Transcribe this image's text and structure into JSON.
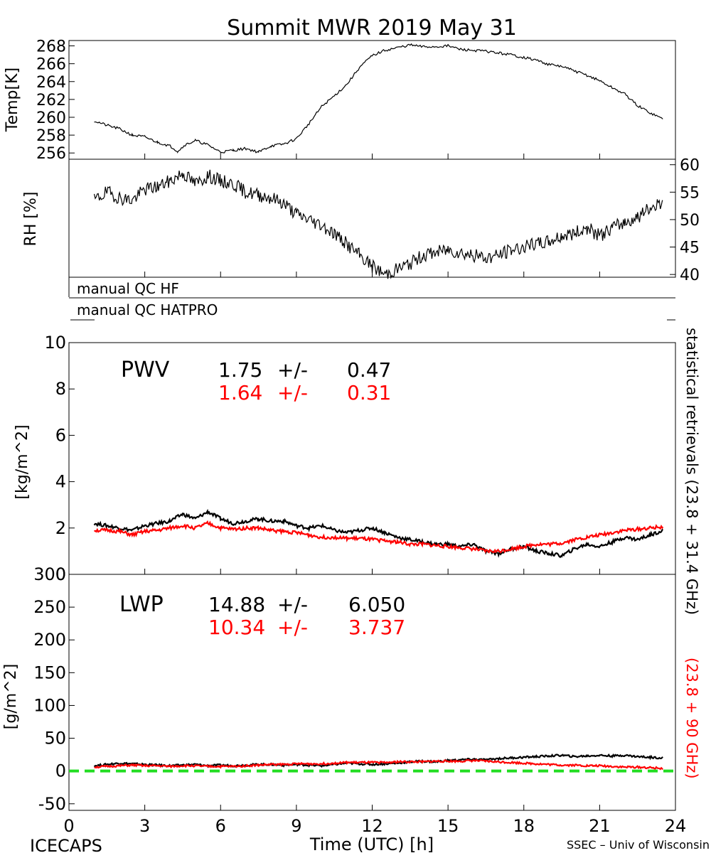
{
  "title": "Summit MWR 2019 May 31",
  "footer": {
    "left": "ICECAPS",
    "right": "SSEC – Univ of Wisconsin"
  },
  "side_labels": {
    "black": "statistical retrievals (23.8 + 31.4 GHz)",
    "red": "(23.8 + 90 GHz)"
  },
  "colors": {
    "black_series": "#000000",
    "red_series": "#ff0000",
    "zero_line": "#22dd22"
  },
  "chart_data": [
    {
      "id": "temp",
      "type": "line",
      "ylabel": "Temp[K]",
      "ylim": [
        255.3,
        268.6
      ],
      "yticks": [
        256,
        258,
        260,
        262,
        264,
        266,
        268
      ],
      "axis_side": "left",
      "x": [
        1.0,
        1.5,
        2.0,
        2.5,
        3.0,
        3.5,
        4.0,
        4.3,
        4.6,
        5.0,
        5.5,
        6.0,
        6.5,
        7.0,
        7.5,
        8.0,
        8.5,
        9.0,
        9.5,
        10.0,
        10.5,
        11.0,
        11.5,
        12.0,
        12.5,
        13.0,
        13.5,
        14.0,
        14.5,
        15.0,
        15.5,
        16.0,
        16.5,
        17.0,
        17.5,
        18.0,
        18.5,
        19.0,
        19.5,
        20.0,
        20.5,
        21.0,
        21.5,
        22.0,
        22.5,
        23.0,
        23.5
      ],
      "y": [
        259.6,
        259.1,
        258.7,
        258.0,
        257.8,
        257.2,
        256.8,
        256.2,
        256.9,
        257.4,
        256.9,
        256.1,
        256.3,
        256.5,
        256.1,
        256.8,
        257.0,
        257.6,
        259.3,
        261.2,
        262.4,
        263.7,
        265.6,
        266.9,
        267.5,
        267.8,
        268.1,
        267.9,
        267.9,
        268.0,
        267.6,
        267.5,
        267.4,
        267.2,
        267.0,
        266.7,
        266.4,
        265.9,
        265.7,
        265.2,
        264.7,
        264.1,
        263.3,
        262.6,
        261.3,
        260.5,
        259.8
      ]
    },
    {
      "id": "rh",
      "type": "line",
      "ylabel": "RH [%]",
      "ylim": [
        39.5,
        61
      ],
      "yticks": [
        40,
        45,
        50,
        55,
        60
      ],
      "axis_side": "right",
      "x": [
        1.0,
        1.5,
        2.0,
        2.5,
        3.0,
        3.5,
        4.0,
        4.5,
        5.0,
        5.5,
        6.0,
        6.5,
        7.0,
        7.5,
        8.0,
        8.5,
        9.0,
        9.5,
        10.0,
        10.5,
        11.0,
        11.5,
        12.0,
        12.5,
        13.0,
        13.5,
        14.0,
        14.5,
        15.0,
        15.5,
        16.0,
        16.5,
        17.0,
        17.5,
        18.0,
        18.5,
        19.0,
        19.5,
        20.0,
        20.5,
        21.0,
        21.5,
        22.0,
        22.5,
        23.0,
        23.5
      ],
      "y": [
        53.5,
        55.0,
        54.0,
        53.5,
        55.5,
        56.0,
        57.0,
        58.5,
        56.5,
        58.0,
        57.0,
        56.5,
        55.0,
        54.5,
        54.0,
        53.0,
        51.0,
        50.0,
        49.0,
        47.5,
        45.5,
        43.5,
        41.5,
        40.0,
        41.0,
        42.0,
        43.5,
        44.0,
        44.5,
        44.0,
        43.5,
        43.0,
        43.5,
        44.5,
        45.0,
        45.5,
        46.0,
        47.0,
        47.5,
        48.5,
        47.0,
        48.5,
        49.5,
        50.5,
        52.0,
        53.5
      ]
    },
    {
      "id": "pwv",
      "type": "line",
      "ylabel": "[kg/m^2]",
      "ylim": [
        0,
        10
      ],
      "yticks": [
        0,
        2,
        4,
        6,
        8,
        10
      ],
      "axis_side": "left",
      "annotation": {
        "label": "PWV",
        "black_value": "1.75",
        "black_pm": "+/-",
        "black_err": "0.47",
        "red_value": "1.64",
        "red_pm": "+/-",
        "red_err": "0.31"
      },
      "x": [
        1.0,
        1.5,
        2.0,
        2.5,
        3.0,
        3.5,
        4.0,
        4.5,
        5.0,
        5.5,
        6.0,
        6.5,
        7.0,
        7.5,
        8.0,
        8.5,
        9.0,
        9.5,
        10.0,
        10.5,
        11.0,
        11.5,
        12.0,
        12.5,
        13.0,
        13.5,
        14.0,
        14.5,
        15.0,
        15.5,
        16.0,
        16.5,
        17.0,
        17.5,
        18.0,
        18.5,
        19.0,
        19.5,
        20.0,
        20.5,
        21.0,
        21.5,
        22.0,
        22.5,
        23.0,
        23.5
      ],
      "series": [
        {
          "color": "#000000",
          "values": [
            2.2,
            2.1,
            2.0,
            1.9,
            2.1,
            2.2,
            2.3,
            2.6,
            2.4,
            2.7,
            2.4,
            2.2,
            2.3,
            2.4,
            2.3,
            2.3,
            2.1,
            2.0,
            2.1,
            1.9,
            1.8,
            1.9,
            2.0,
            1.8,
            1.6,
            1.5,
            1.4,
            1.3,
            1.3,
            1.2,
            1.3,
            1.0,
            0.9,
            1.1,
            1.2,
            1.0,
            0.9,
            0.8,
            1.1,
            1.3,
            1.2,
            1.4,
            1.6,
            1.5,
            1.7,
            1.9
          ]
        },
        {
          "color": "#ff0000",
          "values": [
            1.9,
            1.9,
            1.85,
            1.7,
            1.85,
            1.9,
            2.0,
            2.1,
            2.0,
            2.2,
            2.0,
            1.95,
            2.0,
            2.0,
            1.9,
            1.85,
            1.8,
            1.7,
            1.6,
            1.6,
            1.55,
            1.55,
            1.5,
            1.45,
            1.4,
            1.3,
            1.3,
            1.25,
            1.2,
            1.15,
            1.1,
            1.0,
            1.0,
            1.1,
            1.2,
            1.3,
            1.3,
            1.35,
            1.5,
            1.6,
            1.7,
            1.8,
            1.9,
            1.95,
            2.0,
            2.05
          ]
        }
      ]
    },
    {
      "id": "lwp",
      "type": "line",
      "ylabel": "[g/m^2]",
      "ylim": [
        -60,
        300
      ],
      "yticks": [
        -50,
        0,
        50,
        100,
        150,
        200,
        250,
        300
      ],
      "axis_side": "left",
      "annotation": {
        "label": "LWP",
        "black_value": "14.88",
        "black_pm": "+/-",
        "black_err": "6.050",
        "red_value": "10.34",
        "red_pm": "+/-",
        "red_err": "3.737"
      },
      "x": [
        1.0,
        1.5,
        2.0,
        2.5,
        3.0,
        3.5,
        4.0,
        4.5,
        5.0,
        5.5,
        6.0,
        6.5,
        7.0,
        7.5,
        8.0,
        8.5,
        9.0,
        9.5,
        10.0,
        10.5,
        11.0,
        11.5,
        12.0,
        12.5,
        13.0,
        13.5,
        14.0,
        14.5,
        15.0,
        15.5,
        16.0,
        16.5,
        17.0,
        17.5,
        18.0,
        18.5,
        19.0,
        19.5,
        20.0,
        20.5,
        21.0,
        21.5,
        22.0,
        22.5,
        23.0,
        23.5
      ],
      "series": [
        {
          "color": "#000000",
          "values": [
            8,
            10,
            12,
            11,
            10,
            9,
            8,
            9,
            10,
            8,
            9,
            8,
            9,
            10,
            10,
            9,
            10,
            9,
            8,
            10,
            12,
            11,
            10,
            11,
            12,
            14,
            15,
            14,
            16,
            17,
            18,
            17,
            19,
            20,
            21,
            22,
            23,
            24,
            22,
            23,
            24,
            23,
            24,
            22,
            21,
            20
          ]
        },
        {
          "color": "#ff0000",
          "values": [
            6,
            7,
            8,
            9,
            8,
            8,
            7,
            8,
            8,
            7,
            7,
            7,
            8,
            9,
            10,
            10,
            11,
            11,
            11,
            12,
            13,
            13,
            13,
            13,
            14,
            14,
            14,
            15,
            15,
            15,
            16,
            15,
            14,
            13,
            12,
            11,
            10,
            9,
            9,
            8,
            8,
            7,
            6,
            6,
            5,
            4
          ]
        }
      ],
      "zero_line": 0
    }
  ],
  "qc_rows": [
    {
      "label": "manual QC HF"
    },
    {
      "label": "manual QC HATPRO"
    }
  ],
  "xaxis": {
    "label": "Time (UTC) [h]",
    "xlim": [
      0,
      24
    ],
    "ticks": [
      0,
      3,
      6,
      9,
      12,
      15,
      18,
      21,
      24
    ]
  }
}
